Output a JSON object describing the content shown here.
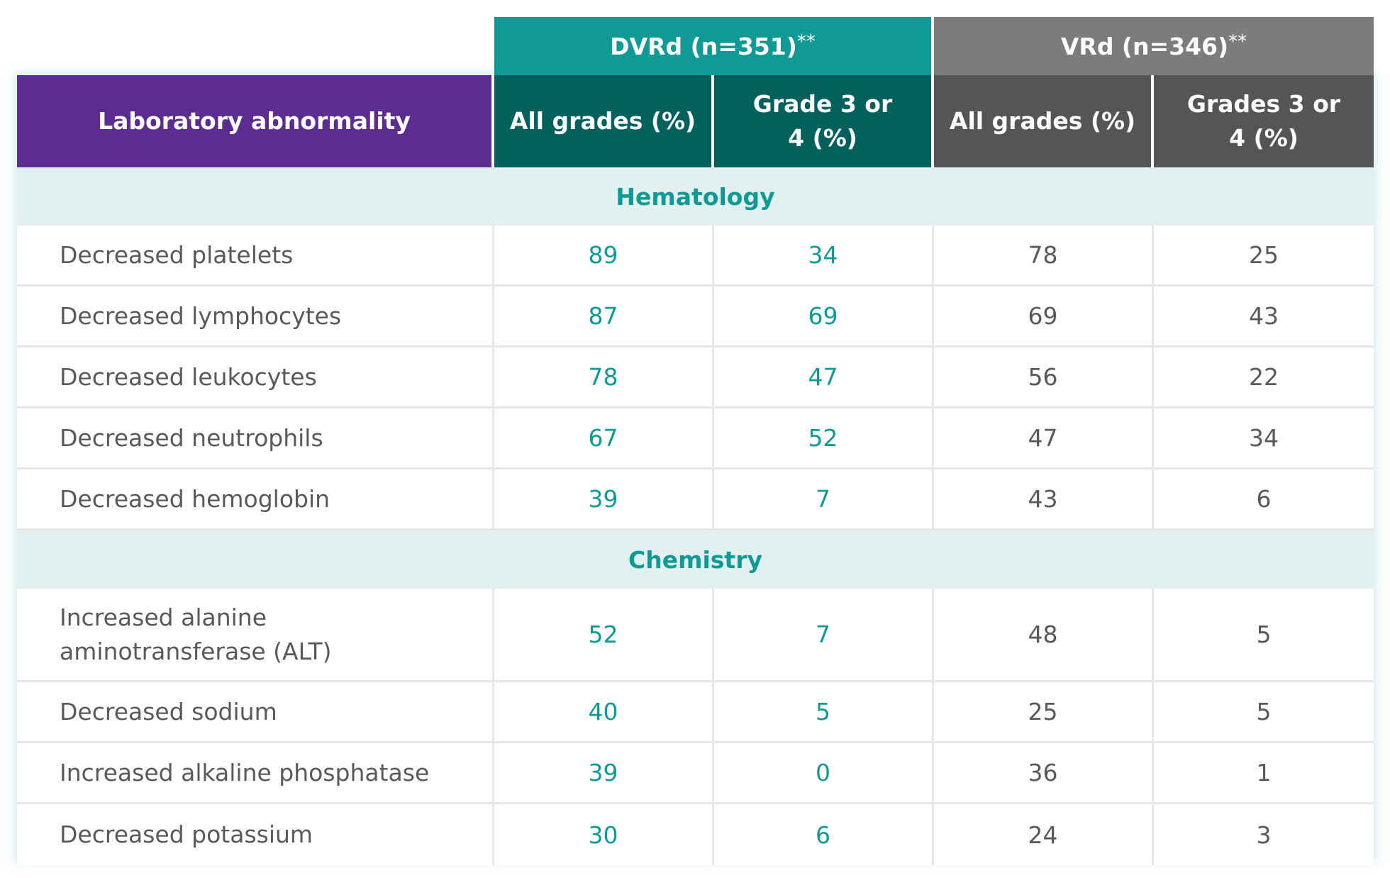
{
  "table": {
    "groups": {
      "dvrd": {
        "label": "DVRd (n=351)",
        "marker": "**"
      },
      "vrd": {
        "label": "VRd (n=346)",
        "marker": "**"
      }
    },
    "headers": {
      "lab": "Laboratory abnormality",
      "dvrd_all": "All grades (%)",
      "dvrd_g34": "Grade 3 or 4 (%)",
      "vrd_all": "All grades (%)",
      "vrd_g34": "Grades 3 or 4 (%)"
    },
    "sections": [
      {
        "title": "Hematology",
        "rows": [
          {
            "name": "Decreased platelets",
            "dvrd_all": "89",
            "dvrd_g34": "34",
            "vrd_all": "78",
            "vrd_g34": "25"
          },
          {
            "name": "Decreased lymphocytes",
            "dvrd_all": "87",
            "dvrd_g34": "69",
            "vrd_all": "69",
            "vrd_g34": "43"
          },
          {
            "name": "Decreased leukocytes",
            "dvrd_all": "78",
            "dvrd_g34": "47",
            "vrd_all": "56",
            "vrd_g34": "22"
          },
          {
            "name": "Decreased neutrophils",
            "dvrd_all": "67",
            "dvrd_g34": "52",
            "vrd_all": "47",
            "vrd_g34": "34"
          },
          {
            "name": "Decreased hemoglobin",
            "dvrd_all": "39",
            "dvrd_g34": "7",
            "vrd_all": "43",
            "vrd_g34": "6"
          }
        ]
      },
      {
        "title": "Chemistry",
        "rows": [
          {
            "name": "Increased alanine aminotransferase (ALT)",
            "dvrd_all": "52",
            "dvrd_g34": "7",
            "vrd_all": "48",
            "vrd_g34": "5"
          },
          {
            "name": "Decreased sodium",
            "dvrd_all": "40",
            "dvrd_g34": "5",
            "vrd_all": "25",
            "vrd_g34": "5"
          },
          {
            "name": "Increased alkaline phosphatase",
            "dvrd_all": "39",
            "dvrd_g34": "0",
            "vrd_all": "36",
            "vrd_g34": "1"
          },
          {
            "name": "Decreased potassium",
            "dvrd_all": "30",
            "dvrd_g34": "6",
            "vrd_all": "24",
            "vrd_g34": "3"
          }
        ]
      }
    ],
    "colors": {
      "lab_header": "#5b2d91",
      "dvrd_group": "#109a95",
      "dvrd_sub": "#00605c",
      "vrd_group": "#7b7c7e",
      "vrd_sub": "#545557",
      "section_bg": "#e2f1f0",
      "dvrd_value": "#109a95"
    }
  }
}
